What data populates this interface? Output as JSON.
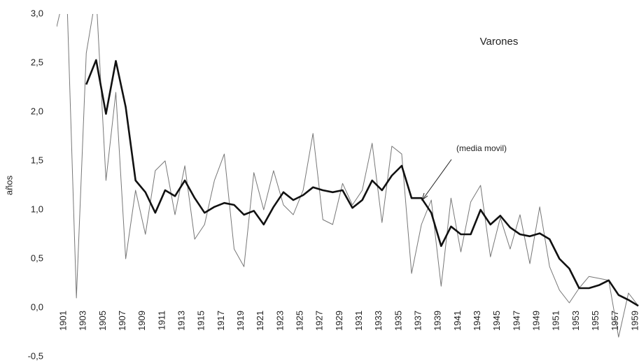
{
  "chart_data": {
    "type": "line",
    "title": "Varones",
    "y_label": "años",
    "annotation": "(media movil)",
    "x": [
      1901,
      1902,
      1903,
      1904,
      1905,
      1906,
      1907,
      1908,
      1909,
      1910,
      1911,
      1912,
      1913,
      1914,
      1915,
      1916,
      1917,
      1918,
      1919,
      1920,
      1921,
      1922,
      1923,
      1924,
      1925,
      1926,
      1927,
      1928,
      1929,
      1930,
      1931,
      1932,
      1933,
      1934,
      1935,
      1936,
      1937,
      1938,
      1939,
      1940,
      1941,
      1942,
      1943,
      1944,
      1945,
      1946,
      1947,
      1948,
      1949,
      1950,
      1951,
      1952,
      1953,
      1954,
      1955,
      1956,
      1957,
      1958,
      1959,
      1960
    ],
    "series": [
      {
        "color": "#777777",
        "width": 1,
        "values": [
          2.87,
          3.3,
          0.1,
          2.6,
          3.2,
          1.3,
          2.2,
          0.5,
          1.2,
          0.75,
          1.4,
          1.5,
          0.95,
          1.45,
          0.7,
          0.85,
          1.3,
          1.57,
          0.6,
          0.42,
          1.38,
          1.0,
          1.4,
          1.05,
          0.95,
          1.2,
          1.78,
          0.9,
          0.85,
          1.27,
          1.05,
          1.2,
          1.68,
          0.87,
          1.65,
          1.57,
          0.35,
          0.85,
          1.1,
          0.22,
          1.12,
          0.57,
          1.08,
          1.25,
          0.52,
          0.92,
          0.6,
          0.95,
          0.45,
          1.03,
          0.42,
          0.18,
          0.05,
          0.2,
          0.32,
          0.3,
          0.28,
          -0.3,
          0.15,
          0.02
        ]
      },
      {
        "color": "#111111",
        "width": 2.6,
        "values": [
          null,
          null,
          null,
          2.28,
          2.53,
          1.98,
          2.52,
          2.05,
          1.3,
          1.18,
          0.97,
          1.2,
          1.14,
          1.3,
          1.12,
          0.97,
          1.03,
          1.07,
          1.05,
          0.95,
          0.99,
          0.85,
          1.03,
          1.18,
          1.1,
          1.15,
          1.23,
          1.2,
          1.18,
          1.2,
          1.02,
          1.1,
          1.3,
          1.2,
          1.35,
          1.45,
          1.12,
          1.12,
          0.97,
          0.63,
          0.83,
          0.75,
          0.75,
          1.0,
          0.85,
          0.94,
          0.82,
          0.75,
          0.73,
          0.76,
          0.7,
          0.5,
          0.4,
          0.2,
          0.2,
          0.23,
          0.28,
          0.13,
          0.08,
          0.02
        ]
      }
    ],
    "xlim": [
      1901,
      1960
    ],
    "xticks": [
      1901,
      1903,
      1905,
      1907,
      1909,
      1911,
      1913,
      1915,
      1917,
      1919,
      1921,
      1923,
      1925,
      1927,
      1929,
      1931,
      1933,
      1935,
      1937,
      1939,
      1941,
      1943,
      1945,
      1947,
      1949,
      1951,
      1953,
      1955,
      1957,
      1959
    ],
    "ylim": [
      -0.5,
      3.0
    ],
    "yticks": [
      {
        "value": 3,
        "label": "3,0"
      },
      {
        "value": 2.5,
        "label": "2,5"
      },
      {
        "value": 2,
        "label": "2,0"
      },
      {
        "value": 1.5,
        "label": "1,5"
      },
      {
        "value": 1,
        "label": "1,0"
      },
      {
        "value": 0.5,
        "label": "0,5"
      },
      {
        "value": 0,
        "label": "0,0"
      },
      {
        "value": -0.5,
        "label": "-0,5"
      }
    ]
  }
}
